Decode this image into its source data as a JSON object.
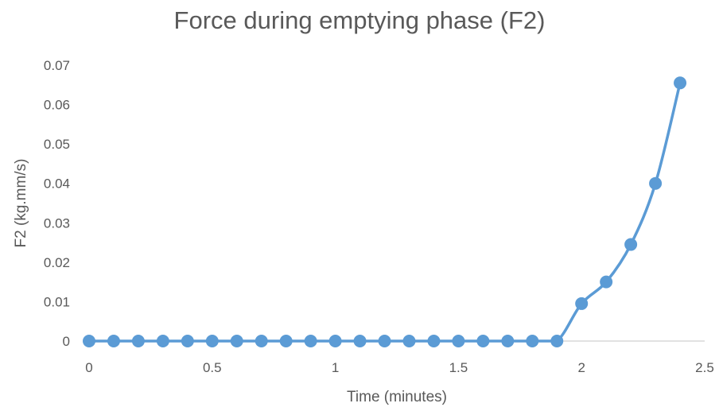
{
  "chart_data": {
    "type": "scatter",
    "title": "Force during emptying phase (F2)",
    "xlabel": "Time (minutes)",
    "ylabel": "F2 (kg.mm/s)",
    "xlim": [
      0,
      2.5
    ],
    "ylim": [
      0,
      0.07
    ],
    "x_ticks": [
      0,
      0.5,
      1,
      1.5,
      2,
      2.5
    ],
    "x_tick_labels": [
      "0",
      "0.5",
      "1",
      "1.5",
      "2",
      "2.5"
    ],
    "y_ticks": [
      0,
      0.01,
      0.02,
      0.03,
      0.04,
      0.05,
      0.06,
      0.07
    ],
    "y_tick_labels": [
      "0",
      "0.01",
      "0.02",
      "0.03",
      "0.04",
      "0.05",
      "0.06",
      "0.07"
    ],
    "grid": false,
    "smooth_line": true,
    "series": [
      {
        "color": "#5b9bd5",
        "x": [
          0,
          0.1,
          0.2,
          0.3,
          0.4,
          0.5,
          0.6,
          0.7,
          0.8,
          0.9,
          1.0,
          1.1,
          1.2,
          1.3,
          1.4,
          1.5,
          1.6,
          1.7,
          1.8,
          1.9,
          2.0,
          2.1,
          2.2,
          2.3,
          2.4
        ],
        "values": [
          0,
          0,
          0,
          0,
          0,
          0,
          0,
          0,
          0,
          0,
          0,
          0,
          0,
          0,
          0,
          0,
          0,
          0,
          0,
          0,
          0.0095,
          0.015,
          0.0245,
          0.04,
          0.0655
        ]
      }
    ]
  }
}
